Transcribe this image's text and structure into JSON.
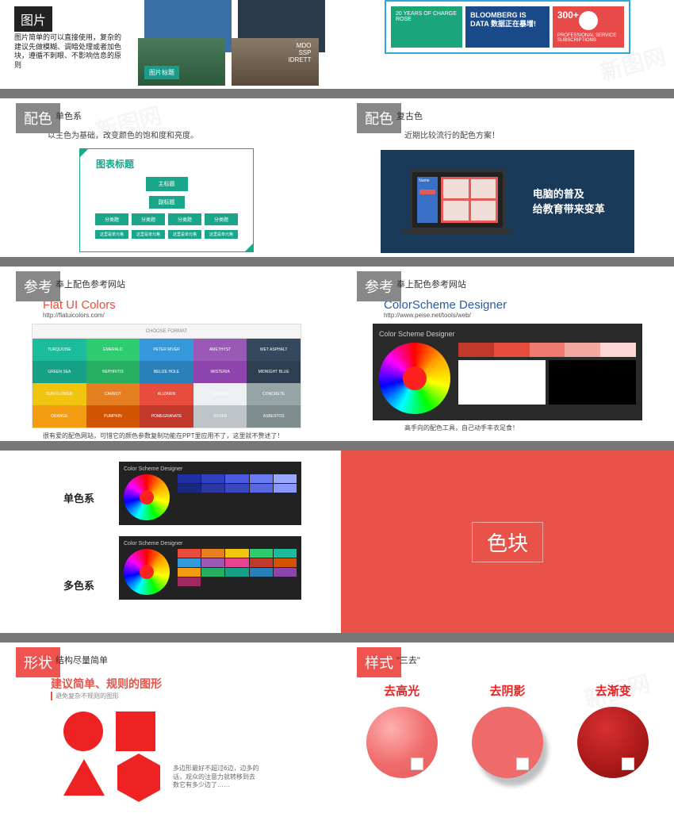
{
  "watermark": "新图网",
  "s1": {
    "imgtag": "图片",
    "txt": "图片简单的可以直接使用，复杂的建议先做模糊、调暗处理或者加色块，遵循不刺眼、不影响信息的原则",
    "piclabel": "图片标题",
    "mdo": "MDO\nSSP\nIDRETT"
  },
  "s2": {
    "a": "20 YEARS OF CHARGE ROSE",
    "b": "BLOOMBERG IS DATA 数据正在暴增!",
    "c": "PROFESSIONAL SERVICE SUBSCRIPTIONS",
    "num": "300+"
  },
  "peise": {
    "tag": "配色",
    "sub_mono": "单色系",
    "sub_retro": "复古色",
    "desc_mono": "以主色为基础，改变颜色的饱和度和亮度。",
    "desc_retro": "近期比较流行的配色方案！",
    "chart_title": "图表标题",
    "chart_main": "主标题",
    "chart_sub": "副标题",
    "chart_col": "分类题",
    "chart_cell": "这里是单元格",
    "retro_t": "电脑的普及\n给教育带来变革"
  },
  "ref": {
    "tag": "参考",
    "sub": "奉上配色参考网站",
    "flat_title": "Flat UI Colors",
    "flat_url": "http://flatuicolors.com/",
    "flat_head": "CHOOSE FORMAT",
    "flat_foot": "很有爱的配色网站，可惜它的颜色参数复制功能在PPT里应用不了，这里就不赘述了！",
    "flat_colors": [
      {
        "n": "TURQUOISE",
        "c": "#1abc9c"
      },
      {
        "n": "EMERALD",
        "c": "#2ecc71"
      },
      {
        "n": "PETER RIVER",
        "c": "#3498db"
      },
      {
        "n": "AMETHYST",
        "c": "#9b59b6"
      },
      {
        "n": "WET ASPHALT",
        "c": "#34495e"
      },
      {
        "n": "GREEN SEA",
        "c": "#16a085"
      },
      {
        "n": "NEPHRITIS",
        "c": "#27ae60"
      },
      {
        "n": "BELIZE HOLE",
        "c": "#2980b9"
      },
      {
        "n": "WISTERIA",
        "c": "#8e44ad"
      },
      {
        "n": "MIDNIGHT BLUE",
        "c": "#2c3e50"
      },
      {
        "n": "SUN FLOWER",
        "c": "#f1c40f"
      },
      {
        "n": "CARROT",
        "c": "#e67e22"
      },
      {
        "n": "ALIZARIN",
        "c": "#e74c3c"
      },
      {
        "n": "CLOUDS",
        "c": "#ecf0f1"
      },
      {
        "n": "CONCRETE",
        "c": "#95a5a6"
      },
      {
        "n": "ORANGE",
        "c": "#f39c12"
      },
      {
        "n": "PUMPKIN",
        "c": "#d35400"
      },
      {
        "n": "POMEGRANATE",
        "c": "#c0392b"
      },
      {
        "n": "SILVER",
        "c": "#bdc3c7"
      },
      {
        "n": "ASBESTOS",
        "c": "#7f8c8d"
      }
    ],
    "csd_title": "ColorScheme Designer",
    "csd_url": "http://www.peise.net/tools/web/",
    "csd_head": "Color Scheme Designer",
    "csd_foot": "高手向的配色工具，自己动手丰衣足食！",
    "csd_strip": [
      "#c0392b",
      "#e74c3c",
      "#ef7a70",
      "#f5a8a0",
      "#fbd6d2"
    ]
  },
  "mono": {
    "label": "单色系",
    "colors": [
      "#2030a0",
      "#3040c0",
      "#4a5ae0",
      "#6a7af0",
      "#9aa8ff",
      "#1a2880",
      "#2a38a0",
      "#3a48c0",
      "#5a68e0",
      "#8a98ff"
    ]
  },
  "multi": {
    "label": "多色系",
    "colors": [
      "#e74c3c",
      "#e67e22",
      "#f1c40f",
      "#2ecc71",
      "#1abc9c",
      "#3498db",
      "#9b59b6",
      "#e84393",
      "#c0392b",
      "#d35400",
      "#f39c12",
      "#27ae60",
      "#16a085",
      "#2980b9",
      "#8e44ad",
      "#a02860"
    ]
  },
  "sekuai": "色块",
  "shape": {
    "tag": "形状",
    "sub": "结构尽量简单",
    "h": "建议简单、规则的图形",
    "h2": "避免复杂不规则的图形",
    "note": "多边形最好不超过6边，边多的话，观众的注意力就转移到去数它有多少边了……"
  },
  "style": {
    "tag": "样式",
    "sub": "\"三去\"",
    "a": "去高光",
    "b": "去阴影",
    "c": "去渐变"
  }
}
